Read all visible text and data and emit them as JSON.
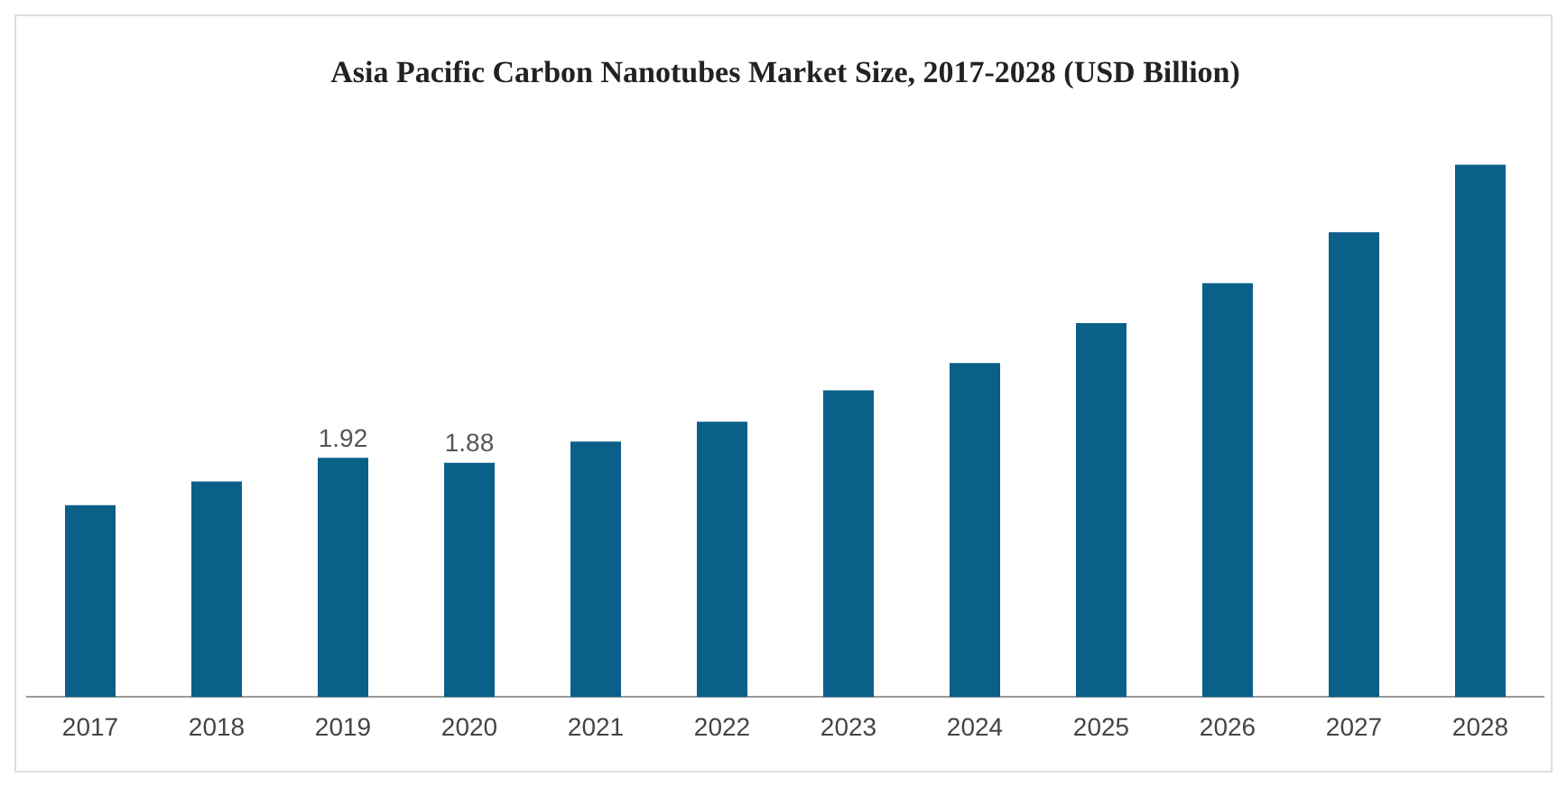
{
  "chart_data": {
    "type": "bar",
    "title": "Asia Pacific Carbon Nanotubes Market Size, 2017-2028 (USD Billion)",
    "categories": [
      "2017",
      "2018",
      "2019",
      "2020",
      "2021",
      "2022",
      "2023",
      "2024",
      "2025",
      "2026",
      "2027",
      "2028"
    ],
    "values": [
      1.54,
      1.73,
      1.92,
      1.88,
      2.05,
      2.21,
      2.46,
      2.68,
      3.0,
      3.32,
      3.73,
      4.27
    ],
    "value_labels": [
      null,
      null,
      "1.92",
      "1.88",
      null,
      null,
      null,
      null,
      null,
      null,
      null,
      null
    ],
    "color": "#0b6089",
    "grid": false,
    "legend": false
  }
}
